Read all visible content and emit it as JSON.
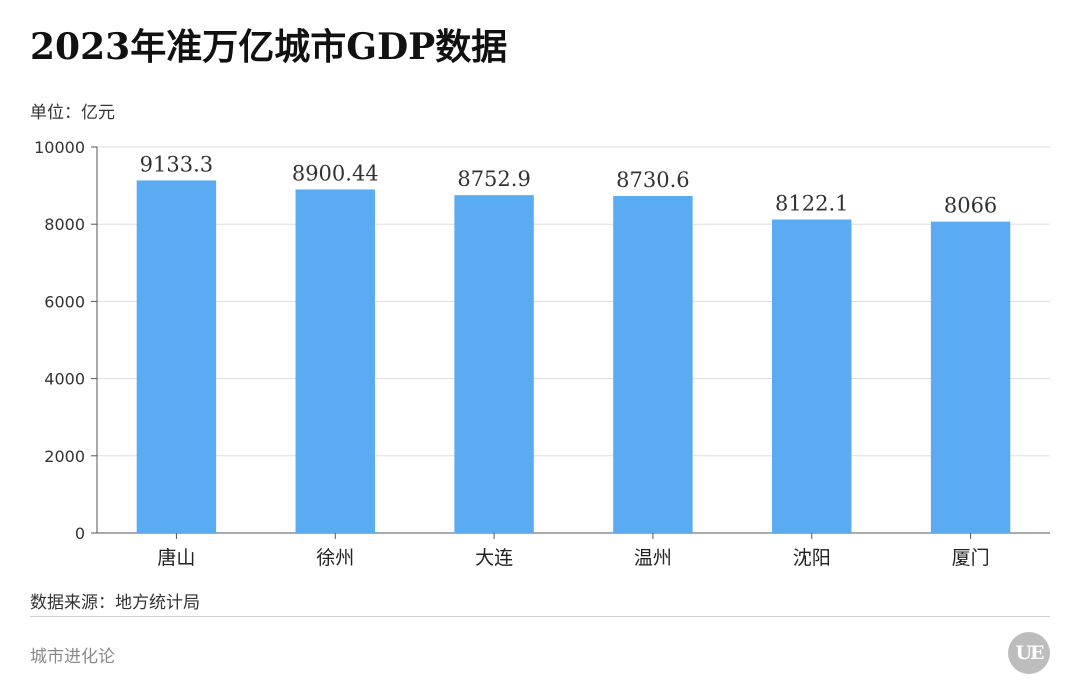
{
  "chart_data": {
    "type": "bar",
    "title": "2023年准万亿城市GDP数据",
    "unit_label": "单位：亿元",
    "categories": [
      "唐山",
      "徐州",
      "大连",
      "温州",
      "沈阳",
      "厦门"
    ],
    "values": [
      9133.3,
      8900.44,
      8752.9,
      8730.6,
      8122.1,
      8066
    ],
    "value_labels": [
      "9133.3",
      "8900.44",
      "8752.9",
      "8730.6",
      "8122.1",
      "8066"
    ],
    "ylim": [
      0,
      10000
    ],
    "yticks": [
      0,
      2000,
      4000,
      6000,
      8000,
      10000
    ],
    "grid": true,
    "bar_color": "#5aabf2",
    "source": "数据来源：地方统计局"
  },
  "footer": {
    "brand": "城市进化论",
    "logo_text": "UE"
  }
}
